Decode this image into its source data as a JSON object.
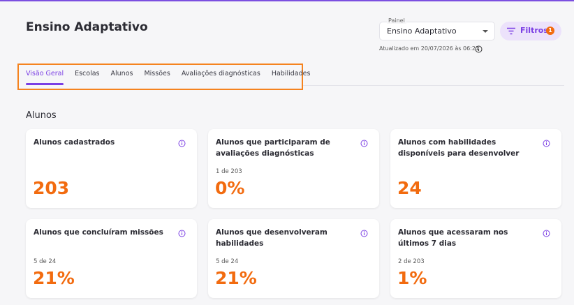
{
  "header": {
    "title": "Ensino Adaptativo"
  },
  "panel": {
    "label": "Painel",
    "value": "Ensino Adaptativo"
  },
  "filters": {
    "label": "Filtros",
    "count": "1"
  },
  "updated": "Atualizado em 20/07/2026 às 06:21",
  "tabs": [
    "Visão Geral",
    "Escolas",
    "Alunos",
    "Missões",
    "Avaliações diagnósticas",
    "Habilidades"
  ],
  "section": {
    "title": "Alunos"
  },
  "cards": [
    {
      "title": "Alunos cadastrados",
      "value": "203"
    },
    {
      "title": "Alunos que participaram de avaliações diagnósticas",
      "subtitle": "1 de 203",
      "value": "0%"
    },
    {
      "title": "Alunos com habilidades disponíveis para desenvolver",
      "value": "24"
    },
    {
      "title": "Alunos que concluíram missões",
      "subtitle": "5 de 24",
      "value": "21%"
    },
    {
      "title": "Alunos que desenvolveram habilidades",
      "subtitle": "5 de 24",
      "value": "21%"
    },
    {
      "title": "Alunos que acessaram nos últimos 7 dias",
      "subtitle": "2 de 203",
      "value": "1%"
    }
  ]
}
